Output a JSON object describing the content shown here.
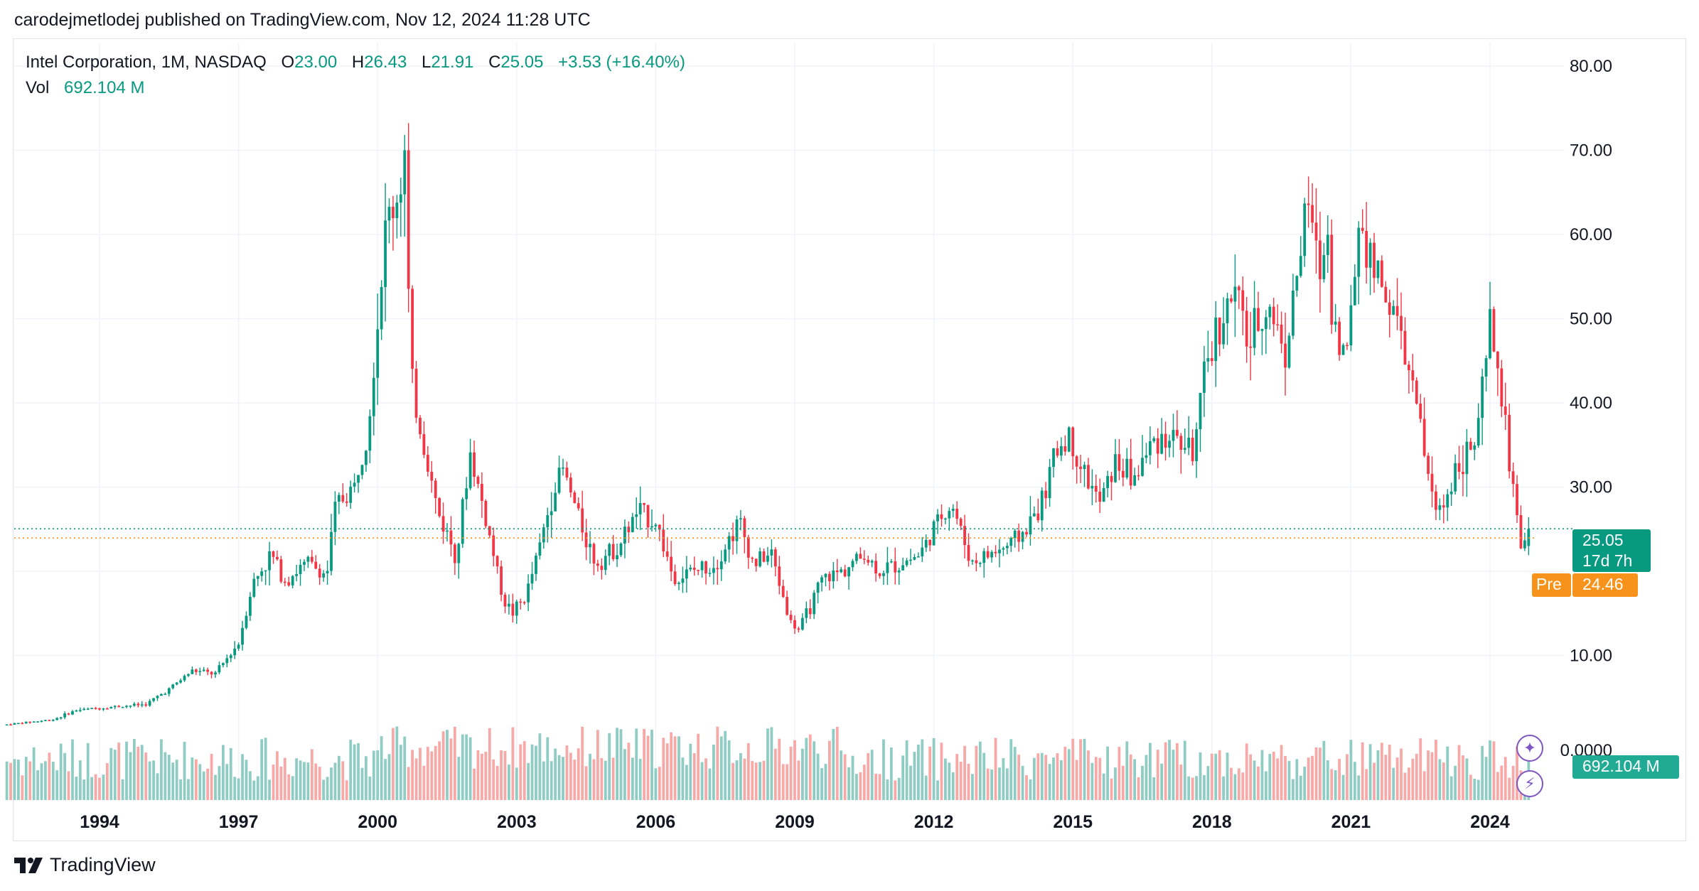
{
  "header": {
    "publisher": "carodejmetlodej published on TradingView.com, Nov 12, 2024 11:28 UTC"
  },
  "legend": {
    "symbol": "Intel Corporation, 1M, NASDAQ",
    "open_label": "O",
    "open_value": "23.00",
    "high_label": "H",
    "high_value": "26.43",
    "low_label": "L",
    "low_value": "21.91",
    "close_label": "C",
    "close_value": "25.05",
    "change": "+3.53 (+16.40%)",
    "vol_label": "Vol",
    "vol_value": "692.104 M"
  },
  "price_tags": {
    "last_price": "25.05",
    "countdown": "17d 7h",
    "pre_label": "Pre",
    "pre_price": "24.46",
    "volume": "692.104 M"
  },
  "footer": {
    "brand": "TradingView"
  },
  "colors": {
    "up": "#089981",
    "down": "#f23645",
    "up_vol": "#8fcdc4",
    "down_vol": "#f7a9a7",
    "pre": "#f7931a",
    "grid": "#f0f3fa"
  },
  "icons": {
    "sparkle_button": "sparkle-icon",
    "lightning_button": "lightning-icon",
    "logo": "tradingview-logo-icon"
  },
  "chart_data": {
    "type": "candlestick",
    "interval": "1M",
    "price_axis": {
      "ticks": [
        10,
        20,
        30,
        40,
        50,
        60,
        70,
        80
      ],
      "tick_labels": [
        "10.00",
        "",
        "30.00",
        "40.00",
        "50.00",
        "60.00",
        "70.00",
        "80.00"
      ],
      "range": [
        0,
        85
      ],
      "volume_baseline_label": "0.0000"
    },
    "time_axis": {
      "tick_labels": [
        "1994",
        "1997",
        "2000",
        "2003",
        "2006",
        "2009",
        "2012",
        "2015",
        "2018",
        "2021",
        "2024"
      ],
      "range": [
        1992.0,
        2025.0
      ]
    },
    "grid": true,
    "last_close": 25.05,
    "premarket": 24.46,
    "series": [
      {
        "name": "price",
        "anchors": [
          [
            1992.0,
            1.8
          ],
          [
            1993.0,
            2.4
          ],
          [
            1993.5,
            3.5
          ],
          [
            1994.5,
            4.0
          ],
          [
            1995.0,
            4.2
          ],
          [
            1995.5,
            6.0
          ],
          [
            1996.0,
            8.2
          ],
          [
            1996.5,
            7.8
          ],
          [
            1997.0,
            11.5
          ],
          [
            1997.3,
            18.5
          ],
          [
            1997.7,
            22.0
          ],
          [
            1998.0,
            19.0
          ],
          [
            1998.5,
            21.0
          ],
          [
            1998.9,
            19.5
          ],
          [
            1999.1,
            28.0
          ],
          [
            1999.5,
            30.0
          ],
          [
            1999.8,
            38.0
          ],
          [
            2000.2,
            62.0
          ],
          [
            2000.4,
            64.0
          ],
          [
            2000.6,
            70.0
          ],
          [
            2000.7,
            43.0
          ],
          [
            2001.0,
            35.0
          ],
          [
            2001.3,
            27.0
          ],
          [
            2001.7,
            22.0
          ],
          [
            2002.0,
            34.0
          ],
          [
            2002.3,
            27.0
          ],
          [
            2002.7,
            17.0
          ],
          [
            2002.9,
            15.0
          ],
          [
            2003.2,
            17.0
          ],
          [
            2003.5,
            23.0
          ],
          [
            2003.8,
            30.0
          ],
          [
            2004.0,
            32.0
          ],
          [
            2004.3,
            27.0
          ],
          [
            2004.7,
            21.0
          ],
          [
            2005.2,
            23.0
          ],
          [
            2005.6,
            27.0
          ],
          [
            2006.0,
            26.0
          ],
          [
            2006.4,
            19.0
          ],
          [
            2006.8,
            20.0
          ],
          [
            2007.3,
            21.0
          ],
          [
            2007.8,
            26.0
          ],
          [
            2008.1,
            21.0
          ],
          [
            2008.5,
            22.0
          ],
          [
            2008.9,
            14.0
          ],
          [
            2009.1,
            13.0
          ],
          [
            2009.6,
            19.0
          ],
          [
            2010.0,
            20.0
          ],
          [
            2010.5,
            22.0
          ],
          [
            2010.8,
            20.0
          ],
          [
            2011.3,
            21.0
          ],
          [
            2011.7,
            22.0
          ],
          [
            2012.2,
            27.0
          ],
          [
            2012.4,
            28.0
          ],
          [
            2012.8,
            21.0
          ],
          [
            2013.2,
            22.0
          ],
          [
            2013.6,
            23.0
          ],
          [
            2014.0,
            25.0
          ],
          [
            2014.4,
            29.0
          ],
          [
            2014.6,
            34.0
          ],
          [
            2014.9,
            36.0
          ],
          [
            2015.3,
            31.0
          ],
          [
            2015.6,
            28.0
          ],
          [
            2015.9,
            33.0
          ],
          [
            2016.3,
            31.0
          ],
          [
            2016.8,
            36.0
          ],
          [
            2017.2,
            36.0
          ],
          [
            2017.6,
            34.0
          ],
          [
            2017.9,
            45.0
          ],
          [
            2018.2,
            50.0
          ],
          [
            2018.5,
            53.0
          ],
          [
            2018.8,
            47.0
          ],
          [
            2019.2,
            52.0
          ],
          [
            2019.6,
            46.0
          ],
          [
            2019.9,
            58.0
          ],
          [
            2020.1,
            64.0
          ],
          [
            2020.3,
            55.0
          ],
          [
            2020.5,
            60.0
          ],
          [
            2020.6,
            50.0
          ],
          [
            2020.9,
            45.0
          ],
          [
            2021.2,
            63.0
          ],
          [
            2021.4,
            57.0
          ],
          [
            2021.7,
            54.0
          ],
          [
            2021.9,
            51.0
          ],
          [
            2022.2,
            45.0
          ],
          [
            2022.5,
            37.0
          ],
          [
            2022.8,
            27.0
          ],
          [
            2023.0,
            28.0
          ],
          [
            2023.3,
            33.0
          ],
          [
            2023.7,
            35.0
          ],
          [
            2023.9,
            44.0
          ],
          [
            2024.0,
            49.0
          ],
          [
            2024.2,
            43.0
          ],
          [
            2024.45,
            31.0
          ],
          [
            2024.55,
            30.0
          ],
          [
            2024.62,
            22.0
          ],
          [
            2024.75,
            22.5
          ],
          [
            2024.86,
            25.05
          ]
        ]
      }
    ]
  }
}
